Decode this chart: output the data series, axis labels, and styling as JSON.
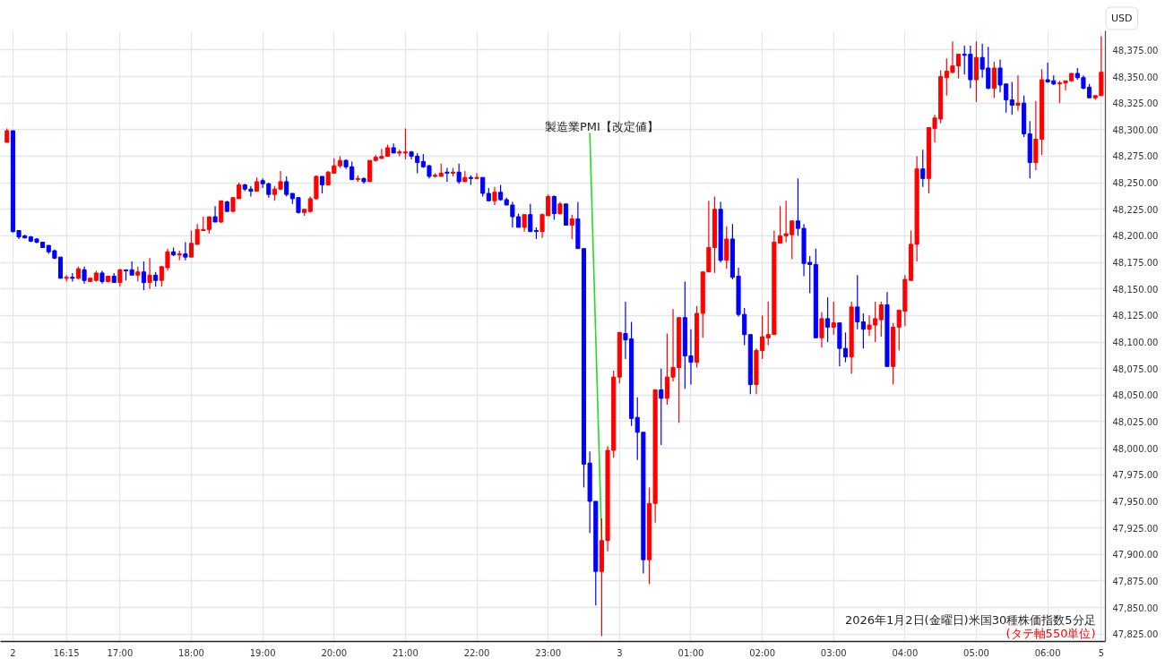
{
  "chart_data": {
    "type": "candlestick",
    "title": "2026年1月2日(金曜日)米国30種株価指数5分足",
    "subtitle": "(タテ軸550単位)",
    "ylabel": "USD",
    "annotations": [
      {
        "text": "製造業PMI【改定値】",
        "y": 47913
      }
    ],
    "categories": [
      null,
      "2",
      null,
      null,
      null,
      null,
      null,
      null,
      null,
      null,
      "16:15",
      null,
      null,
      null,
      null,
      null,
      null,
      null,
      null,
      "17:00",
      null,
      null,
      null,
      null,
      null,
      null,
      null,
      null,
      null,
      null,
      null,
      "18:00",
      null,
      null,
      null,
      null,
      null,
      null,
      null,
      null,
      null,
      null,
      null,
      "19:00",
      null,
      null,
      null,
      null,
      null,
      null,
      null,
      null,
      null,
      null,
      null,
      "20:00",
      null,
      null,
      null,
      null,
      null,
      null,
      null,
      null,
      null,
      null,
      null,
      "21:00",
      null,
      null,
      null,
      null,
      null,
      null,
      null,
      null,
      null,
      null,
      null,
      "22:00",
      null,
      null,
      null,
      null,
      null,
      null,
      null,
      null,
      null,
      null,
      null,
      "23:00",
      null,
      null,
      null,
      null,
      null,
      null,
      null,
      null,
      null,
      null,
      null,
      "3",
      null,
      null,
      null,
      null,
      null,
      null,
      null,
      null,
      null,
      null,
      null,
      "01:00",
      null,
      null,
      null,
      null,
      null,
      null,
      null,
      null,
      null,
      null,
      null,
      "02:00",
      null,
      null,
      null,
      null,
      null,
      null,
      null,
      null,
      null,
      null,
      null,
      "03:00",
      null,
      null,
      null,
      null,
      null,
      null,
      null,
      null,
      null,
      null,
      null,
      "04:00",
      null,
      null,
      null,
      null,
      null,
      null,
      null,
      null,
      null,
      null,
      null,
      "05:00",
      null,
      null,
      null,
      null,
      null,
      null,
      null,
      null,
      null,
      null,
      null,
      "06:00",
      null,
      null,
      null,
      null,
      null,
      null,
      null,
      null,
      "5"
    ],
    "ohlc": [
      [
        48288,
        48301,
        48288,
        48299
      ],
      [
        48299,
        48299,
        48203,
        48204
      ],
      [
        48205,
        48205,
        48197,
        48199
      ],
      [
        48200,
        48201,
        48198,
        48198
      ],
      [
        48199,
        48200,
        48194,
        48195
      ],
      [
        48197,
        48198,
        48193,
        48194
      ],
      [
        48194,
        48194,
        48189,
        48189
      ],
      [
        48191,
        48191,
        48183,
        48185
      ],
      [
        48186,
        48187,
        48178,
        48179
      ],
      [
        48180,
        48180,
        48160,
        48160
      ],
      [
        48160,
        48163,
        48157,
        48161
      ],
      [
        48161,
        48165,
        48157,
        48160
      ],
      [
        48160,
        48171,
        48159,
        48169
      ],
      [
        48168,
        48171,
        48155,
        48158
      ],
      [
        48157,
        48161,
        48157,
        48160
      ],
      [
        48158,
        48167,
        48157,
        48165
      ],
      [
        48165,
        48167,
        48155,
        48157
      ],
      [
        48157,
        48162,
        48156,
        48162
      ],
      [
        48162,
        48165,
        48156,
        48156
      ],
      [
        48156,
        48169,
        48152,
        48168
      ],
      [
        48168,
        48168,
        48158,
        48167
      ],
      [
        48168,
        48176,
        48163,
        48163
      ],
      [
        48163,
        48171,
        48157,
        48166
      ],
      [
        48166,
        48176,
        48149,
        48156
      ],
      [
        48156,
        48179,
        48150,
        48163
      ],
      [
        48163,
        48166,
        48152,
        48158
      ],
      [
        48158,
        48171,
        48152,
        48171
      ],
      [
        48170,
        48188,
        48167,
        48185
      ],
      [
        48185,
        48189,
        48181,
        48182
      ],
      [
        48182,
        48186,
        48177,
        48183
      ],
      [
        48183,
        48194,
        48177,
        48180
      ],
      [
        48180,
        48205,
        48180,
        48193
      ],
      [
        48192,
        48211,
        48192,
        48206
      ],
      [
        48205,
        48218,
        48205,
        48206
      ],
      [
        48206,
        48218,
        48202,
        48218
      ],
      [
        48218,
        48228,
        48213,
        48213
      ],
      [
        48213,
        48233,
        48212,
        48233
      ],
      [
        48232,
        48233,
        48223,
        48223
      ],
      [
        48223,
        48236,
        48223,
        48236
      ],
      [
        48235,
        48250,
        48235,
        48248
      ],
      [
        48248,
        48249,
        48242,
        48244
      ],
      [
        48244,
        48247,
        48237,
        48242
      ],
      [
        48242,
        48255,
        48242,
        48251
      ],
      [
        48252,
        48254,
        48245,
        48249
      ],
      [
        48249,
        48250,
        48236,
        48239
      ],
      [
        48239,
        48247,
        48233,
        48244
      ],
      [
        48244,
        48261,
        48243,
        48251
      ],
      [
        48251,
        48256,
        48237,
        48239
      ],
      [
        48240,
        48240,
        48230,
        48235
      ],
      [
        48236,
        48236,
        48221,
        48222
      ],
      [
        48222,
        48225,
        48219,
        48225
      ],
      [
        48223,
        48237,
        48222,
        48235
      ],
      [
        48235,
        48257,
        48234,
        48256
      ],
      [
        48256,
        48256,
        48240,
        48248
      ],
      [
        48248,
        48261,
        48248,
        48260
      ],
      [
        48259,
        48273,
        48259,
        48266
      ],
      [
        48266,
        48275,
        48264,
        48271
      ],
      [
        48271,
        48272,
        48263,
        48265
      ],
      [
        48265,
        48270,
        48253,
        48253
      ],
      [
        48253,
        48257,
        48251,
        48254
      ],
      [
        48254,
        48255,
        48249,
        48251
      ],
      [
        48251,
        48271,
        48251,
        48271
      ],
      [
        48271,
        48276,
        48270,
        48274
      ],
      [
        48273,
        48282,
        48272,
        48275
      ],
      [
        48275,
        48286,
        48275,
        48283
      ],
      [
        48283,
        48287,
        48278,
        48278
      ],
      [
        48278,
        48281,
        48275,
        48279
      ],
      [
        48278,
        48301,
        48272,
        48279
      ],
      [
        48279,
        48280,
        48272,
        48275
      ],
      [
        48275,
        48278,
        48259,
        48269
      ],
      [
        48270,
        48277,
        48264,
        48265
      ],
      [
        48266,
        48267,
        48254,
        48256
      ],
      [
        48256,
        48259,
        48255,
        48257
      ],
      [
        48256,
        48268,
        48256,
        48259
      ],
      [
        48260,
        48264,
        48251,
        48259
      ],
      [
        48259,
        48264,
        48256,
        48260
      ],
      [
        48260,
        48268,
        48249,
        48251
      ],
      [
        48251,
        48261,
        48251,
        48255
      ],
      [
        48255,
        48257,
        48248,
        48254
      ],
      [
        48254,
        48259,
        48253,
        48255
      ],
      [
        48255,
        48255,
        48237,
        48240
      ],
      [
        48240,
        48245,
        48233,
        48233
      ],
      [
        48233,
        48246,
        48229,
        48241
      ],
      [
        48241,
        48248,
        48233,
        48234
      ],
      [
        48234,
        48236,
        48229,
        48229
      ],
      [
        48229,
        48232,
        48208,
        48218
      ],
      [
        48218,
        48221,
        48208,
        48208
      ],
      [
        48208,
        48220,
        48204,
        48220
      ],
      [
        48220,
        48230,
        48204,
        48204
      ],
      [
        48205,
        48208,
        48197,
        48204
      ],
      [
        48204,
        48221,
        48198,
        48220
      ],
      [
        48219,
        48239,
        48219,
        48237
      ],
      [
        48237,
        48238,
        48215,
        48221
      ],
      [
        48221,
        48232,
        48220,
        48230
      ],
      [
        48230,
        48230,
        48210,
        48210
      ],
      [
        48210,
        48220,
        48197,
        48216
      ],
      [
        48216,
        48232,
        48188,
        48188
      ],
      [
        48188,
        48188,
        47963,
        47985
      ],
      [
        47986,
        47997,
        47920,
        47950
      ],
      [
        47950,
        47950,
        47852,
        47884
      ],
      [
        47884,
        47934,
        47823,
        47913
      ],
      [
        47913,
        48002,
        47903,
        47998
      ],
      [
        47998,
        48073,
        47991,
        48067
      ],
      [
        48067,
        48109,
        48061,
        48109
      ],
      [
        48108,
        48138,
        48084,
        48102
      ],
      [
        48103,
        48119,
        48021,
        48028
      ],
      [
        48029,
        48048,
        47989,
        48015
      ],
      [
        48015,
        48015,
        47882,
        47895
      ],
      [
        47895,
        47963,
        47872,
        47948
      ],
      [
        47948,
        48055,
        47930,
        48055
      ],
      [
        48055,
        48075,
        48003,
        48047
      ],
      [
        48047,
        48108,
        48041,
        48067
      ],
      [
        48067,
        48131,
        48063,
        48076
      ],
      [
        48076,
        48123,
        48024,
        48123
      ],
      [
        48123,
        48157,
        48056,
        48087
      ],
      [
        48087,
        48112,
        48060,
        48081
      ],
      [
        48081,
        48134,
        48076,
        48127
      ],
      [
        48127,
        48166,
        48104,
        48166
      ],
      [
        48166,
        48233,
        48166,
        48189
      ],
      [
        48189,
        48237,
        48165,
        48225
      ],
      [
        48225,
        48232,
        48175,
        48177
      ],
      [
        48177,
        48209,
        48169,
        48197
      ],
      [
        48197,
        48211,
        48159,
        48161
      ],
      [
        48162,
        48170,
        48124,
        48126
      ],
      [
        48126,
        48132,
        48097,
        48107
      ],
      [
        48107,
        48107,
        48051,
        48060
      ],
      [
        48060,
        48094,
        48051,
        48092
      ],
      [
        48092,
        48125,
        48084,
        48105
      ],
      [
        48104,
        48138,
        48097,
        48107
      ],
      [
        48107,
        48205,
        48107,
        48194
      ],
      [
        48193,
        48228,
        48193,
        48200
      ],
      [
        48200,
        48233,
        48194,
        48202
      ],
      [
        48201,
        48214,
        48178,
        48214
      ],
      [
        48214,
        48254,
        48200,
        48207
      ],
      [
        48207,
        48211,
        48162,
        48174
      ],
      [
        48175,
        48181,
        48146,
        48173
      ],
      [
        48173,
        48188,
        48104,
        48104
      ],
      [
        48104,
        48128,
        48095,
        48122
      ],
      [
        48122,
        48142,
        48100,
        48114
      ],
      [
        48114,
        48138,
        48107,
        48118
      ],
      [
        48118,
        48118,
        48077,
        48094
      ],
      [
        48094,
        48109,
        48081,
        48086
      ],
      [
        48086,
        48138,
        48070,
        48133
      ],
      [
        48133,
        48163,
        48112,
        48119
      ],
      [
        48119,
        48127,
        48094,
        48112
      ],
      [
        48112,
        48125,
        48106,
        48116
      ],
      [
        48116,
        48138,
        48100,
        48122
      ],
      [
        48121,
        48138,
        48105,
        48135
      ],
      [
        48135,
        48147,
        48077,
        48077
      ],
      [
        48077,
        48118,
        48060,
        48114
      ],
      [
        48114,
        48130,
        48092,
        48130
      ],
      [
        48129,
        48163,
        48115,
        48159
      ],
      [
        48158,
        48205,
        48158,
        48192
      ],
      [
        48192,
        48275,
        48176,
        48263
      ],
      [
        48263,
        48281,
        48246,
        48254
      ],
      [
        48254,
        48302,
        48240,
        48302
      ],
      [
        48301,
        48314,
        48288,
        48311
      ],
      [
        48310,
        48356,
        48306,
        48350
      ],
      [
        48349,
        48367,
        48332,
        48355
      ],
      [
        48354,
        48383,
        48353,
        48360
      ],
      [
        48360,
        48371,
        48348,
        48371
      ],
      [
        48371,
        48379,
        48352,
        48370
      ],
      [
        48371,
        48379,
        48339,
        48347
      ],
      [
        48347,
        48383,
        48326,
        48368
      ],
      [
        48368,
        48381,
        48349,
        48357
      ],
      [
        48358,
        48378,
        48338,
        48339
      ],
      [
        48339,
        48364,
        48330,
        48358
      ],
      [
        48358,
        48366,
        48335,
        48342
      ],
      [
        48343,
        48343,
        48316,
        48328
      ],
      [
        48328,
        48345,
        48314,
        48323
      ],
      [
        48323,
        48351,
        48318,
        48325
      ],
      [
        48325,
        48332,
        48293,
        48296
      ],
      [
        48296,
        48308,
        48254,
        48269
      ],
      [
        48269,
        48327,
        48262,
        48291
      ],
      [
        48291,
        48357,
        48276,
        48347
      ],
      [
        48347,
        48363,
        48344,
        48345
      ],
      [
        48346,
        48351,
        48342,
        48343
      ],
      [
        48343,
        48346,
        48325,
        48344
      ],
      [
        48344,
        48346,
        48337,
        48346
      ],
      [
        48346,
        48353,
        48345,
        48353
      ],
      [
        48353,
        48358,
        48347,
        48349
      ],
      [
        48349,
        48351,
        48338,
        48339
      ],
      [
        48340,
        48343,
        48330,
        48330
      ],
      [
        48330,
        48332,
        48328,
        48332
      ],
      [
        48332,
        48388,
        48332,
        48354
      ]
    ],
    "colors": [
      "#ff0000",
      "#0000ff",
      "#0000ff",
      "#0000ff",
      "#0000ff",
      "#0000ff",
      "#0000ff",
      "#0000ff",
      "#0000ff",
      "#0000ff",
      "#ff0000",
      "#0000ff",
      "#ff0000",
      "#0000ff",
      "#ff0000",
      "#ff0000",
      "#0000ff",
      "#ff0000",
      "#0000ff",
      "#ff0000",
      "#0000ff",
      "#0000ff",
      "#ff0000",
      "#0000ff",
      "#ff0000",
      "#0000ff",
      "#ff0000",
      "#ff0000",
      "#0000ff",
      "#ff0000",
      "#0000ff",
      "#ff0000",
      "#ff0000",
      "#ff0000",
      "#ff0000",
      "#0000ff",
      "#ff0000",
      "#0000ff",
      "#ff0000",
      "#ff0000",
      "#0000ff",
      "#0000ff",
      "#ff0000",
      "#0000ff",
      "#0000ff",
      "#ff0000",
      "#ff0000",
      "#0000ff",
      "#0000ff",
      "#0000ff",
      "#ff0000",
      "#ff0000",
      "#ff0000",
      "#0000ff",
      "#ff0000",
      "#ff0000",
      "#ff0000",
      "#0000ff",
      "#0000ff",
      "#ff0000",
      "#0000ff",
      "#ff0000",
      "#ff0000",
      "#ff0000",
      "#ff0000",
      "#0000ff",
      "#ff0000",
      "#ff0000",
      "#0000ff",
      "#0000ff",
      "#0000ff",
      "#0000ff",
      "#ff0000",
      "#ff0000",
      "#0000ff",
      "#ff0000",
      "#0000ff",
      "#ff0000",
      "#0000ff",
      "#ff0000",
      "#0000ff",
      "#0000ff",
      "#ff0000",
      "#0000ff",
      "#0000ff",
      "#0000ff",
      "#0000ff",
      "#ff0000",
      "#0000ff",
      "#0000ff",
      "#ff0000",
      "#ff0000",
      "#0000ff",
      "#ff0000",
      "#0000ff",
      "#ff0000",
      "#0000ff",
      "#0000ff",
      "#0000ff",
      "#0000ff",
      "#ff0000",
      "#ff0000",
      "#ff0000",
      "#ff0000",
      "#0000ff",
      "#0000ff",
      "#0000ff",
      "#0000ff",
      "#ff0000",
      "#ff0000",
      "#0000ff",
      "#ff0000",
      "#ff0000",
      "#ff0000",
      "#0000ff",
      "#0000ff",
      "#ff0000",
      "#ff0000",
      "#ff0000",
      "#ff0000",
      "#0000ff",
      "#ff0000",
      "#0000ff",
      "#0000ff",
      "#0000ff",
      "#0000ff",
      "#ff0000",
      "#ff0000",
      "#ff0000",
      "#ff0000",
      "#ff0000",
      "#ff0000",
      "#ff0000",
      "#0000ff",
      "#0000ff",
      "#0000ff",
      "#0000ff",
      "#ff0000",
      "#0000ff",
      "#ff0000",
      "#0000ff",
      "#0000ff",
      "#ff0000",
      "#0000ff",
      "#0000ff",
      "#ff0000",
      "#ff0000",
      "#ff0000",
      "#0000ff",
      "#ff0000",
      "#ff0000",
      "#ff0000",
      "#ff0000",
      "#ff0000",
      "#0000ff",
      "#ff0000",
      "#ff0000",
      "#ff0000",
      "#ff0000",
      "#ff0000",
      "#ff0000",
      "#0000ff",
      "#0000ff",
      "#ff0000",
      "#0000ff",
      "#0000ff",
      "#ff0000",
      "#0000ff",
      "#0000ff",
      "#0000ff",
      "#ff0000",
      "#0000ff",
      "#0000ff",
      "#ff0000",
      "#ff0000",
      "#0000ff",
      "#0000ff",
      "#ff0000",
      "#ff0000",
      "#ff0000",
      "#0000ff",
      "#0000ff",
      "#0000ff",
      "#ff0000",
      "#ff0000"
    ],
    "ylim": [
      47818,
      48393
    ],
    "yticks": [
      {
        "value": 47825,
        "label": "47,825.00"
      },
      {
        "value": 47850,
        "label": "47,850.00"
      },
      {
        "value": 47875,
        "label": "47,875.00"
      },
      {
        "value": 47900,
        "label": "47,900.00"
      },
      {
        "value": 47925,
        "label": "47,925.00"
      },
      {
        "value": 47950,
        "label": "47,950.00"
      },
      {
        "value": 47975,
        "label": "47,975.00"
      },
      {
        "value": 48000,
        "label": "48,000.00"
      },
      {
        "value": 48025,
        "label": "48,025.00"
      },
      {
        "value": 48050,
        "label": "48,050.00"
      },
      {
        "value": 48075,
        "label": "48,075.00"
      },
      {
        "value": 48100,
        "label": "48,100.00"
      },
      {
        "value": 48125,
        "label": "48,125.00"
      },
      {
        "value": 48150,
        "label": "48,150.00"
      },
      {
        "value": 48175,
        "label": "48,175.00"
      },
      {
        "value": 48200,
        "label": "48,200.00"
      },
      {
        "value": 48225,
        "label": "48,225.00"
      },
      {
        "value": 48250,
        "label": "48,250.00"
      },
      {
        "value": 48275,
        "label": "48,275.00"
      },
      {
        "value": 48300,
        "label": "48,300.00"
      },
      {
        "value": 48325,
        "label": "48,325.00"
      },
      {
        "value": 48350,
        "label": "48,350.00"
      },
      {
        "value": 48375,
        "label": "48,375.00"
      }
    ],
    "grid": true
  }
}
